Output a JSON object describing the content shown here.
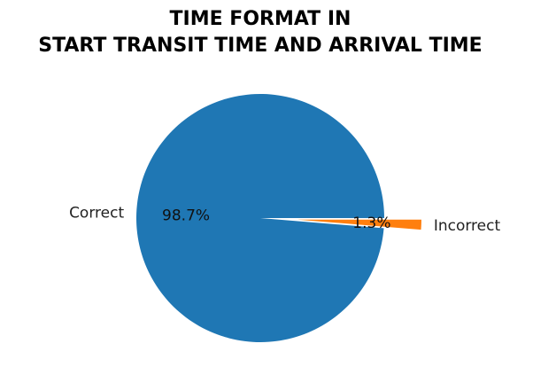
{
  "chart_data": {
    "type": "pie",
    "title_lines": [
      "TIME FORMAT IN",
      "START TRANSIT TIME AND ARRIVAL TIME"
    ],
    "categories": [
      "Correct",
      "Incorrect"
    ],
    "values": [
      98.7,
      1.3
    ],
    "percent_labels": [
      "98.7%",
      "1.3%"
    ],
    "colors": [
      "#1f77b4",
      "#ff7f0e"
    ],
    "explode": [
      0,
      0.3
    ],
    "start_angle_deg": 0,
    "direction": "counterclockwise"
  }
}
